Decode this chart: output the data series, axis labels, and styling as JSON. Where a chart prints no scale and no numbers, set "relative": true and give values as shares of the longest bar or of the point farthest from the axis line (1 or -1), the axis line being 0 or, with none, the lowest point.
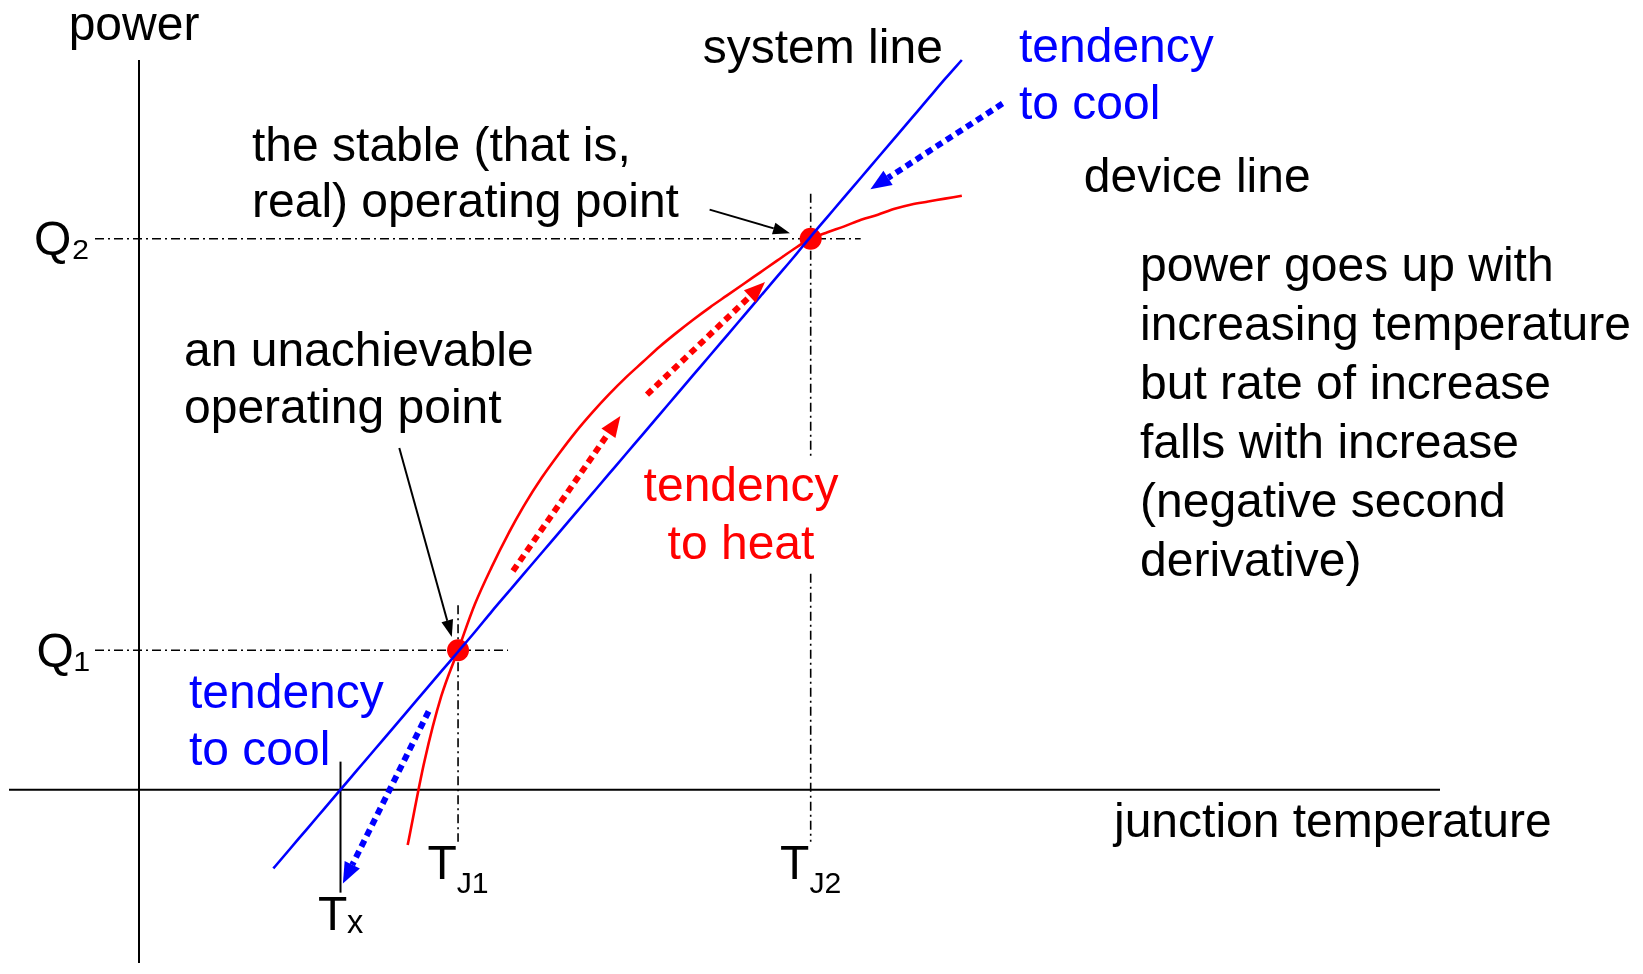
{
  "chart_data": {
    "type": "line",
    "relative": true,
    "xlabel": "junction temperature",
    "ylabel": "power",
    "categories": [
      null,
      null,
      null,
      null,
      null,
      null,
      null,
      null,
      null,
      null,
      null,
      null,
      "Tₓ",
      null,
      null,
      null,
      null,
      null,
      null,
      "T$_{J1}$",
      null,
      null,
      null,
      null,
      null,
      null,
      null,
      null,
      null,
      null,
      null,
      null,
      null,
      null,
      null,
      null,
      null,
      null,
      null,
      null,
      "T$_{J2}$",
      null,
      null,
      null,
      null,
      null,
      null,
      null,
      null,
      null,
      null,
      null,
      null,
      null,
      null,
      null,
      null,
      null,
      null,
      null,
      null,
      null,
      null,
      null,
      null,
      null,
      null,
      null,
      null,
      null,
      null,
      null,
      null,
      null,
      null,
      null,
      null,
      null
    ],
    "series": [
      {
        "name": "system line",
        "color": "#0000ff",
        "values": [
          null,
          null,
          null,
          null,
          null,
          null,
          null,
          null,
          -0.108,
          -0.081,
          -0.054,
          -0.027,
          0.0,
          0.027,
          0.054,
          0.081,
          0.108,
          0.135,
          0.162,
          0.189,
          0.216,
          0.244,
          0.271,
          0.298,
          0.325,
          0.352,
          0.379,
          0.406,
          0.433,
          0.46,
          0.487,
          0.514,
          0.541,
          0.568,
          0.595,
          0.622,
          0.649,
          0.676,
          0.703,
          0.73,
          0.758,
          0.785,
          0.812,
          0.839,
          0.866,
          0.893,
          0.92,
          0.947,
          0.974,
          1.0,
          null,
          null,
          null,
          null,
          null,
          null,
          null,
          null,
          null,
          null,
          null,
          null,
          null,
          null,
          null,
          null,
          null,
          null,
          null,
          null,
          null,
          null,
          null,
          null,
          null,
          null,
          null,
          null
        ]
      },
      {
        "name": "device line",
        "color": "#ff0000",
        "values": [
          null,
          null,
          null,
          null,
          null,
          null,
          null,
          null,
          null,
          null,
          null,
          null,
          null,
          null,
          null,
          null,
          -0.076,
          0.039,
          0.128,
          0.191,
          0.254,
          0.305,
          0.351,
          0.392,
          0.428,
          0.46,
          0.49,
          0.517,
          0.542,
          0.565,
          0.586,
          0.607,
          0.626,
          0.644,
          0.661,
          0.677,
          0.693,
          0.709,
          0.725,
          0.741,
          0.755,
          0.764,
          0.772,
          0.781,
          0.788,
          0.796,
          0.802,
          0.806,
          0.81,
          0.814,
          null,
          null,
          null,
          null,
          null,
          null,
          null,
          null,
          null,
          null,
          null,
          null,
          null,
          null,
          null,
          null,
          null,
          null,
          null,
          null,
          null,
          null,
          null,
          null,
          null,
          null,
          null,
          null
        ]
      },
      {
        "type": "scatter",
        "color": "#ff0000",
        "marker": "circle",
        "values": [
          null,
          null,
          null,
          null,
          null,
          null,
          null,
          null,
          null,
          null,
          null,
          null,
          null,
          null,
          null,
          null,
          null,
          null,
          null,
          0.191,
          null,
          null,
          null,
          null,
          null,
          null,
          null,
          null,
          null,
          null,
          null,
          null,
          null,
          null,
          null,
          null,
          null,
          null,
          null,
          null,
          0.755,
          null,
          null,
          null,
          null,
          null,
          null,
          null,
          null,
          null,
          null,
          null,
          null,
          null,
          null,
          null,
          null,
          null,
          null,
          null,
          null,
          null,
          null,
          null,
          null,
          null,
          null,
          null,
          null,
          null,
          null,
          null,
          null,
          null,
          null,
          null,
          null,
          null
        ]
      }
    ],
    "ref_lines": [
      {
        "axis": "y",
        "value": 0.191,
        "label": "Q₁",
        "line_style": "dashed",
        "color": "#000000"
      },
      {
        "axis": "y",
        "value": 0.755,
        "label": "Q₂",
        "line_style": "dashed",
        "color": "#000000"
      },
      {
        "axis": "x",
        "value": "T$_{J1}$",
        "line_style": "dashed",
        "color": "#000000"
      },
      {
        "axis": "x",
        "value": "T$_{J2}$",
        "line_style": "dashed",
        "color": "#000000"
      }
    ],
    "annotations": [
      "the stable (that is, real) operating point",
      "an unachievable operating point",
      "tendency to cool",
      "tendency to heat",
      "tendency to cool",
      "power goes up with increasing temperature but rate of increase falls with increase (negative second derivative)"
    ]
  }
}
